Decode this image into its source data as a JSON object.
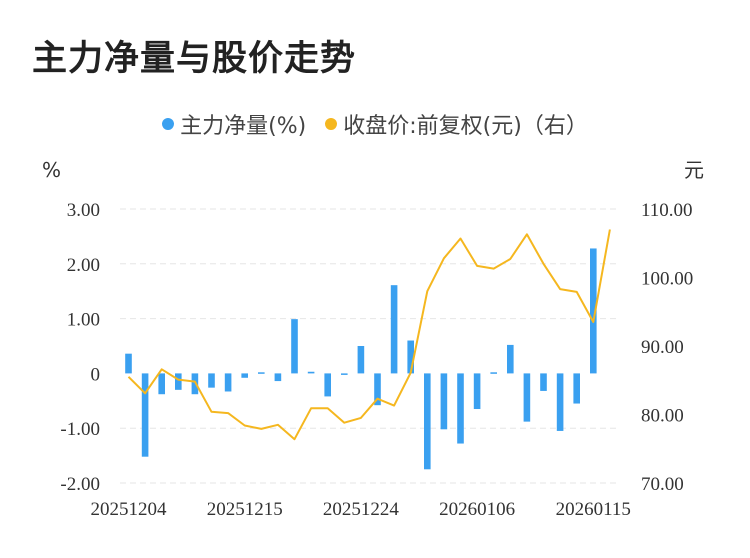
{
  "title": "主力净量与股价走势",
  "legend": [
    {
      "label": "主力净量(%)",
      "color": "#3aa0f0"
    },
    {
      "label": "收盘价:前复权(元)（右）",
      "color": "#f5b71f"
    }
  ],
  "chart_data": {
    "type": "bar+line",
    "title": "主力净量与股价走势",
    "y_left_unit": "%",
    "y_right_unit": "元",
    "y_left_ticks": [
      "3.00",
      "2.00",
      "1.00",
      "0",
      "-1.00",
      "-2.00"
    ],
    "y_right_ticks": [
      "110.00",
      "100.00",
      "90.00",
      "80.00",
      "70.00"
    ],
    "ylim_left": [
      -2,
      3
    ],
    "ylim_right": [
      70,
      110
    ],
    "x_tick_labels": [
      "20251204",
      "20251215",
      "20251224",
      "20260106",
      "20260115"
    ],
    "x_tick_indices": [
      0,
      7,
      14,
      21,
      28
    ],
    "grid": "horizontal dashed",
    "series": [
      {
        "name": "主力净量(%)",
        "type": "bar",
        "color": "#3aa0f0",
        "values": [
          0.36,
          -1.52,
          -0.38,
          -0.3,
          -0.38,
          -0.26,
          -0.33,
          -0.08,
          0.02,
          -0.14,
          0.99,
          0.03,
          -0.42,
          -0.02,
          0.5,
          -0.58,
          1.61,
          0.6,
          -1.75,
          -1.02,
          -1.28,
          -0.65,
          0.02,
          0.52,
          -0.88,
          -0.32,
          -1.05,
          -0.55,
          2.28
        ]
      },
      {
        "name": "收盘价:前复权(元)（右）",
        "type": "line",
        "color": "#f5b71f",
        "values": [
          85.5,
          83.1,
          86.6,
          85.1,
          84.8,
          80.4,
          80.2,
          78.4,
          77.9,
          78.5,
          76.4,
          80.9,
          80.9,
          78.8,
          79.5,
          82.3,
          81.3,
          86.1,
          98.0,
          102.8,
          105.7,
          101.7,
          101.3,
          102.7,
          106.3,
          102.0,
          98.3,
          97.9,
          93.5,
          107.0
        ]
      }
    ]
  }
}
